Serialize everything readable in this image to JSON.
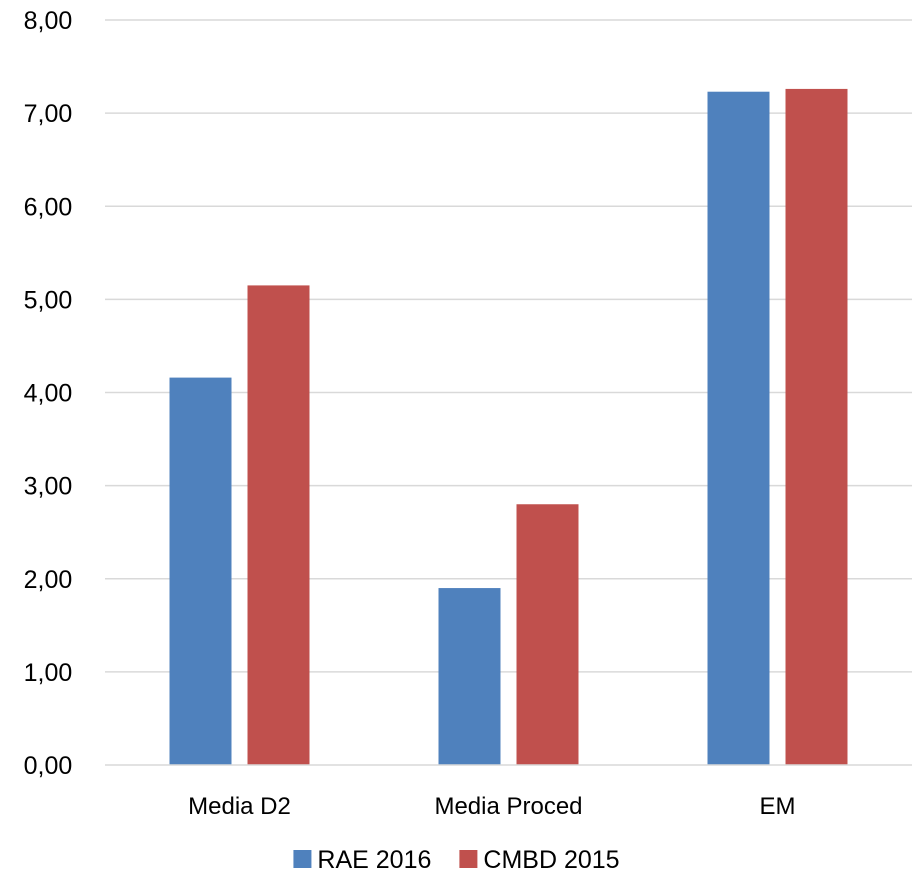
{
  "chart_data": {
    "type": "bar",
    "categories": [
      "Media D2",
      "Media Proced",
      "EM"
    ],
    "series": [
      {
        "name": "RAE 2016",
        "values": [
          4.16,
          1.9,
          7.23
        ],
        "color": "#4f81bd"
      },
      {
        "name": "CMBD 2015",
        "values": [
          5.15,
          2.8,
          7.26
        ],
        "color": "#c0504d"
      }
    ],
    "y_ticks": [
      "0,00",
      "1,00",
      "2,00",
      "3,00",
      "4,00",
      "5,00",
      "6,00",
      "7,00",
      "8,00"
    ],
    "ylim": [
      0,
      8
    ],
    "grid": true,
    "gridline_color": "#d9d9d9",
    "legend_position": "bottom",
    "title": "",
    "xlabel": "",
    "ylabel": ""
  }
}
